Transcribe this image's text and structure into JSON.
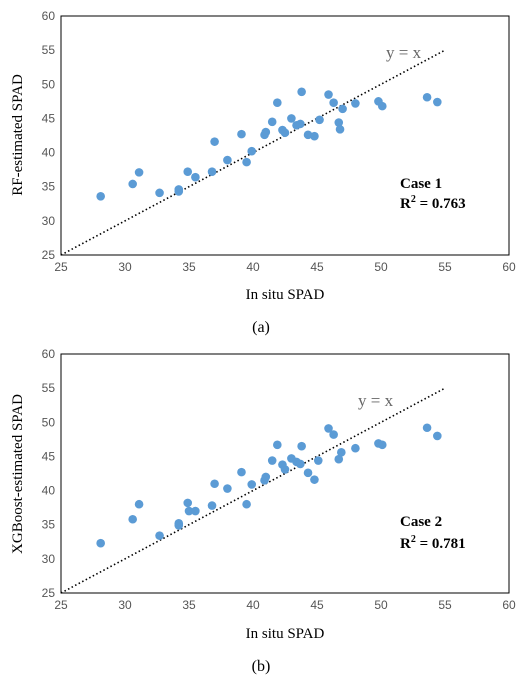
{
  "chart_data": [
    {
      "type": "scatter",
      "xlabel": "In situ SPAD",
      "ylabel": "RF-estimated SPAD",
      "xlim": [
        25,
        60
      ],
      "ylim": [
        25,
        60
      ],
      "xticks": [
        "25",
        "30",
        "35",
        "40",
        "45",
        "50",
        "55",
        "60"
      ],
      "yticks": [
        "25",
        "30",
        "35",
        "40",
        "45",
        "50",
        "55",
        "60"
      ],
      "grid": false,
      "reference_line": {
        "label": "y = x",
        "from": [
          25,
          25
        ],
        "to": [
          55,
          55
        ]
      },
      "annotation": {
        "case": "Case 1",
        "r2_prefix": "R",
        "r2_sup": "2",
        "r2_value": " = 0.763"
      },
      "panel_label": "(a)",
      "marker_color": "#5b9bd5",
      "points": [
        [
          28.1,
          33.6
        ],
        [
          30.6,
          35.4
        ],
        [
          31.1,
          37.1
        ],
        [
          32.7,
          34.1
        ],
        [
          34.2,
          34.3
        ],
        [
          34.2,
          34.6
        ],
        [
          34.9,
          37.2
        ],
        [
          35.5,
          36.4
        ],
        [
          36.8,
          37.2
        ],
        [
          37.0,
          41.6
        ],
        [
          38.0,
          38.9
        ],
        [
          39.1,
          42.7
        ],
        [
          39.5,
          38.6
        ],
        [
          39.9,
          40.2
        ],
        [
          40.9,
          42.6
        ],
        [
          41.0,
          43.0
        ],
        [
          41.5,
          44.5
        ],
        [
          41.9,
          47.3
        ],
        [
          42.3,
          43.3
        ],
        [
          42.5,
          42.9
        ],
        [
          43.0,
          45.0
        ],
        [
          43.4,
          44.0
        ],
        [
          43.7,
          44.2
        ],
        [
          43.8,
          48.9
        ],
        [
          44.3,
          42.6
        ],
        [
          44.8,
          42.4
        ],
        [
          45.2,
          44.8
        ],
        [
          45.9,
          48.5
        ],
        [
          46.3,
          47.3
        ],
        [
          46.7,
          44.4
        ],
        [
          46.8,
          43.4
        ],
        [
          47.0,
          46.4
        ],
        [
          48.0,
          47.2
        ],
        [
          49.8,
          47.5
        ],
        [
          50.1,
          46.8
        ],
        [
          53.6,
          48.1
        ],
        [
          54.4,
          47.4
        ]
      ]
    },
    {
      "type": "scatter",
      "xlabel": "In situ SPAD",
      "ylabel": "XGBoost-estimated SPAD",
      "xlim": [
        25,
        60
      ],
      "ylim": [
        25,
        60
      ],
      "xticks": [
        "25",
        "30",
        "35",
        "40",
        "45",
        "50",
        "55",
        "60"
      ],
      "yticks": [
        "25",
        "30",
        "35",
        "40",
        "45",
        "50",
        "55",
        "60"
      ],
      "grid": false,
      "reference_line": {
        "label": "y = x",
        "from": [
          25,
          25
        ],
        "to": [
          55,
          55
        ]
      },
      "annotation": {
        "case": "Case 2",
        "r2_prefix": "R",
        "r2_sup": "2",
        "r2_value": " = 0.781"
      },
      "panel_label": "(b)",
      "marker_color": "#5b9bd5",
      "points": [
        [
          28.1,
          32.3
        ],
        [
          30.6,
          35.8
        ],
        [
          31.1,
          38.0
        ],
        [
          32.7,
          33.4
        ],
        [
          34.2,
          34.9
        ],
        [
          34.2,
          35.2
        ],
        [
          34.9,
          38.2
        ],
        [
          35.0,
          37.0
        ],
        [
          35.5,
          37.0
        ],
        [
          36.8,
          37.8
        ],
        [
          37.0,
          41.0
        ],
        [
          38.0,
          40.3
        ],
        [
          39.1,
          42.7
        ],
        [
          39.5,
          38.0
        ],
        [
          39.9,
          40.9
        ],
        [
          40.9,
          41.5
        ],
        [
          41.0,
          42.0
        ],
        [
          41.5,
          44.4
        ],
        [
          41.9,
          46.7
        ],
        [
          42.3,
          43.8
        ],
        [
          42.5,
          43.1
        ],
        [
          43.0,
          44.7
        ],
        [
          43.4,
          44.2
        ],
        [
          43.7,
          43.9
        ],
        [
          43.8,
          46.5
        ],
        [
          44.3,
          42.6
        ],
        [
          44.8,
          41.6
        ],
        [
          45.1,
          44.4
        ],
        [
          45.9,
          49.1
        ],
        [
          46.3,
          48.2
        ],
        [
          46.7,
          44.6
        ],
        [
          46.9,
          45.6
        ],
        [
          48.0,
          46.2
        ],
        [
          49.8,
          46.9
        ],
        [
          50.1,
          46.7
        ],
        [
          53.6,
          49.2
        ],
        [
          54.4,
          48.0
        ]
      ]
    }
  ]
}
